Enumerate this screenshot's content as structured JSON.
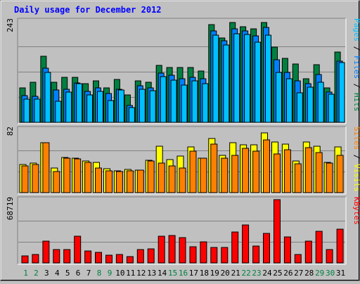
{
  "title": "Daily usage for December 2012",
  "colors": {
    "background": "#c0c0c0",
    "title_text": "#0000ff",
    "hits": "#008040",
    "files": "#0080ff",
    "pages": "#00c0ff",
    "visits": "#ffff00",
    "sites": "#ff8000",
    "kbytes": "#ff0000",
    "weekend_label": "#008040",
    "weekday_label": "#000000"
  },
  "chart_data": [
    {
      "type": "bar",
      "panel": "hits-files-pages",
      "y_max_label": "243",
      "y_max": 243,
      "right_label_parts": [
        {
          "text": "Pages",
          "color_key": "pages"
        },
        {
          "text": " / ",
          "color_key": "separator"
        },
        {
          "text": "Files",
          "color_key": "files"
        },
        {
          "text": " / ",
          "color_key": "separator"
        },
        {
          "text": "Hits",
          "color_key": "hits"
        }
      ],
      "categories": [
        "1",
        "2",
        "3",
        "4",
        "5",
        "6",
        "7",
        "8",
        "9",
        "10",
        "11",
        "12",
        "13",
        "14",
        "15",
        "16",
        "17",
        "18",
        "19",
        "20",
        "21",
        "22",
        "23",
        "24",
        "25",
        "26",
        "27",
        "28",
        "29",
        "30",
        "31"
      ],
      "series": [
        {
          "name": "Hits",
          "values": [
            83,
            96,
            158,
            97,
            108,
            108,
            93,
            100,
            83,
            103,
            65,
            100,
            97,
            137,
            132,
            131,
            132,
            124,
            235,
            203,
            239,
            229,
            225,
            240,
            180,
            153,
            140,
            105,
            138,
            82,
            168
          ]
        },
        {
          "name": "Files",
          "values": [
            64,
            63,
            130,
            78,
            80,
            95,
            75,
            82,
            70,
            79,
            40,
            88,
            82,
            118,
            113,
            104,
            108,
            104,
            220,
            196,
            225,
            220,
            208,
            228,
            150,
            120,
            100,
            93,
            114,
            73,
            147
          ]
        },
        {
          "name": "Pages",
          "values": [
            56,
            55,
            119,
            51,
            72,
            93,
            66,
            74,
            53,
            77,
            36,
            79,
            76,
            109,
            101,
            90,
            100,
            93,
            210,
            185,
            212,
            211,
            192,
            210,
            120,
            105,
            71,
            85,
            97,
            68,
            143
          ]
        }
      ]
    },
    {
      "type": "bar",
      "panel": "visits-sites",
      "y_max_label": "82",
      "y_max": 82,
      "right_label_parts": [
        {
          "text": "Sites",
          "color_key": "sites"
        },
        {
          "text": " / ",
          "color_key": "separator"
        },
        {
          "text": "Visits",
          "color_key": "visits"
        }
      ],
      "categories": [
        "1",
        "2",
        "3",
        "4",
        "5",
        "6",
        "7",
        "8",
        "9",
        "10",
        "11",
        "12",
        "13",
        "14",
        "15",
        "16",
        "17",
        "18",
        "19",
        "20",
        "21",
        "22",
        "23",
        "24",
        "25",
        "26",
        "27",
        "28",
        "29",
        "30",
        "31"
      ],
      "series": [
        {
          "name": "Visits",
          "values": [
            36,
            38,
            65,
            32,
            46,
            45,
            41,
            39,
            31,
            28,
            30,
            29,
            42,
            60,
            43,
            47,
            59,
            45,
            70,
            48,
            65,
            62,
            62,
            77,
            66,
            63,
            41,
            66,
            60,
            39,
            59
          ]
        },
        {
          "name": "Sites",
          "values": [
            35,
            36,
            65,
            27,
            45,
            44,
            39,
            32,
            28,
            27,
            28,
            29,
            41,
            38,
            35,
            32,
            54,
            45,
            63,
            45,
            48,
            57,
            54,
            68,
            50,
            56,
            37,
            58,
            52,
            38,
            48
          ]
        }
      ]
    },
    {
      "type": "bar",
      "panel": "kbytes",
      "y_max_label": "68719",
      "y_max": 68719,
      "right_label_parts": [
        {
          "text": "KBytes",
          "color_key": "kbytes"
        }
      ],
      "categories": [
        "1",
        "2",
        "3",
        "4",
        "5",
        "6",
        "7",
        "8",
        "9",
        "10",
        "11",
        "12",
        "13",
        "14",
        "15",
        "16",
        "17",
        "18",
        "19",
        "20",
        "21",
        "22",
        "23",
        "24",
        "25",
        "26",
        "27",
        "28",
        "29",
        "30",
        "31"
      ],
      "series": [
        {
          "name": "KBytes",
          "values": [
            7700,
            9300,
            24000,
            14500,
            14800,
            29000,
            13000,
            11800,
            8500,
            9500,
            7000,
            14300,
            15500,
            29000,
            29500,
            27800,
            17900,
            22700,
            16500,
            16700,
            33800,
            41100,
            18400,
            31800,
            68719,
            28200,
            9500,
            23600,
            34300,
            14700,
            36600
          ]
        }
      ]
    }
  ],
  "x_axis": {
    "labels": [
      "1",
      "2",
      "3",
      "4",
      "5",
      "6",
      "7",
      "8",
      "9",
      "10",
      "11",
      "12",
      "13",
      "14",
      "15",
      "16",
      "17",
      "18",
      "19",
      "20",
      "21",
      "22",
      "23",
      "24",
      "25",
      "26",
      "27",
      "28",
      "29",
      "30",
      "31"
    ],
    "weekend_days": [
      "1",
      "2",
      "8",
      "9",
      "15",
      "16",
      "22",
      "23",
      "29",
      "30"
    ]
  }
}
